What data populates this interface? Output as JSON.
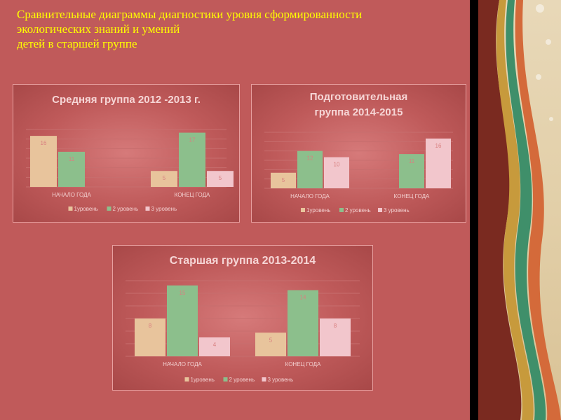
{
  "slide": {
    "title": "Сравнительные диаграммы диагностики   уровня сформированности\nэкологических знаний и умений\n детей  в старшей группе"
  },
  "colors": {
    "level1": "#e8c49c",
    "level2": "#8cbf8c",
    "level3": "#f2c6cc",
    "slide_background": "#c05a5a",
    "title_text": "#ffff00"
  },
  "chart_data": [
    {
      "type": "bar",
      "title": "Средняя группа 2012 -2013 г.",
      "categories": [
        "НАЧАЛО ГОДА",
        "КОНЕЦ ГОДА"
      ],
      "series": [
        {
          "name": "1уровень",
          "values": [
            16,
            5
          ]
        },
        {
          "name": "2 уровень",
          "values": [
            11,
            17
          ]
        },
        {
          "name": "3 уровень",
          "values": [
            null,
            5
          ]
        }
      ],
      "ylim": [
        0,
        18
      ],
      "grid": true,
      "legend": "bottom"
    },
    {
      "type": "bar",
      "title": "Подготовительная\nгруппа 2014-2015",
      "categories": [
        "НАЧАЛО ГОДА",
        "КОНЕЦ ГОДА"
      ],
      "series": [
        {
          "name": "1уровень",
          "values": [
            5,
            null
          ]
        },
        {
          "name": "2 уровень",
          "values": [
            12,
            11
          ]
        },
        {
          "name": "3 уровень",
          "values": [
            10,
            16
          ]
        }
      ],
      "ylim": [
        0,
        18
      ],
      "grid": true,
      "legend": "bottom"
    },
    {
      "type": "bar",
      "title": "Старшая группа 2013-2014",
      "categories": [
        "НАЧАЛО ГОДА",
        "КОНЕЦ ГОДА"
      ],
      "series": [
        {
          "name": "1уровень",
          "values": [
            8,
            5
          ]
        },
        {
          "name": "2 уровень",
          "values": [
            15,
            14
          ]
        },
        {
          "name": "3 уровень",
          "values": [
            4,
            8
          ]
        }
      ],
      "ylim": [
        0,
        16
      ],
      "grid": true,
      "legend": "bottom"
    }
  ]
}
